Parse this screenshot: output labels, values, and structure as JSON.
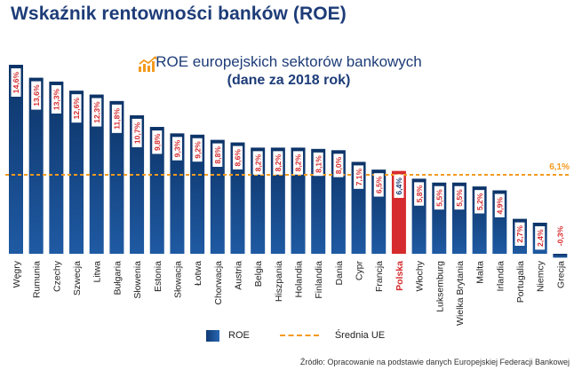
{
  "title": "Wskaźnik rentowności banków (ROE)",
  "subtitle": "ROE europejskich sektorów bankowych",
  "subtitle2": "(dane za 2018 rok)",
  "chart_data": {
    "type": "bar",
    "categories": [
      "Węgry",
      "Rumunia",
      "Czechy",
      "Szwecja",
      "Litwa",
      "Bułgaria",
      "Słowenia",
      "Estonia",
      "Słowacja",
      "Łotwa",
      "Chorwacja",
      "Austria",
      "Belgia",
      "Hiszpania",
      "Holandia",
      "Finlandia",
      "Dania",
      "Cypr",
      "Francja",
      "Polska",
      "Włochy",
      "Luksemburg",
      "Wielka Brytania",
      "Malta",
      "Irlandia",
      "Portugalia",
      "Niemcy",
      "Grecja"
    ],
    "values": [
      14.6,
      13.6,
      13.3,
      12.6,
      12.3,
      11.8,
      10.7,
      9.8,
      9.3,
      9.2,
      8.8,
      8.6,
      8.2,
      8.2,
      8.2,
      8.1,
      8.0,
      7.1,
      6.5,
      6.4,
      5.8,
      5.5,
      5.5,
      5.2,
      4.9,
      2.7,
      2.4,
      -0.3
    ],
    "labels": [
      "14,6%",
      "13,6%",
      "13,3%",
      "12,6%",
      "12,3%",
      "11,8%",
      "10,7%",
      "9,8%",
      "9,3%",
      "9,2%",
      "8,8%",
      "8,6%",
      "8,2%",
      "8,2%",
      "8,2%",
      "8,1%",
      "8,0%",
      "7,1%",
      "6,5%",
      "6,4%",
      "5,8%",
      "5,5%",
      "5,5%",
      "5,2%",
      "4,9%",
      "2,7%",
      "2,4%",
      "-0,3%"
    ],
    "highlight": "Polska",
    "reference_line": {
      "value": 6.1,
      "label": "6,1%"
    },
    "legend": {
      "bar": "ROE",
      "line": "Średnia UE"
    },
    "ylim": [
      -0.3,
      14.6
    ]
  },
  "colors": {
    "bar": "#0e3a72",
    "highlight": "#d52b2e",
    "average": "#f39a1e",
    "title": "#1d3c78",
    "label_text": "#d52b2e"
  },
  "source": "Źródło: Opracowanie na podstawie danych Europejskiej Federacji Bankowej"
}
